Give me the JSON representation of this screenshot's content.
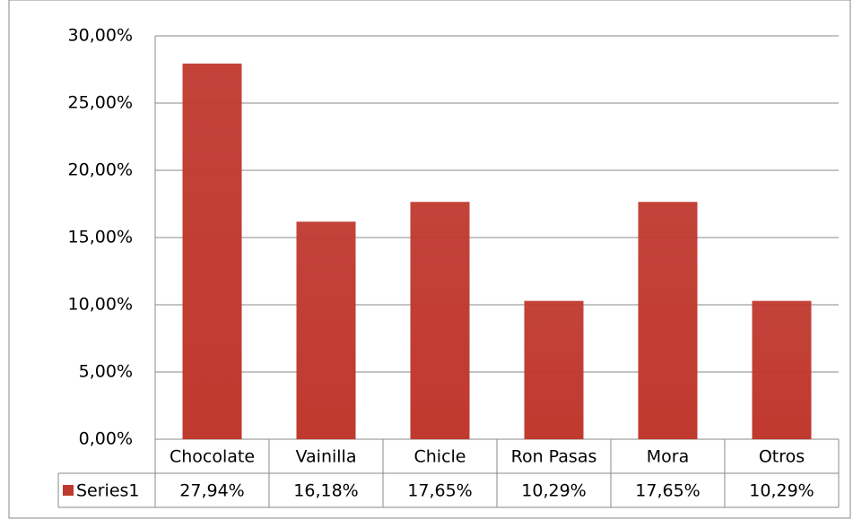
{
  "chart_data": {
    "type": "bar",
    "categories": [
      "Chocolate",
      "Vainilla",
      "Chicle",
      "Ron Pasas",
      "Mora",
      "Otros"
    ],
    "series": [
      {
        "name": "Series1",
        "color": "#c0392f",
        "values": [
          27.94,
          16.18,
          17.65,
          10.29,
          17.65,
          10.29
        ],
        "value_labels": [
          "27,94%",
          "16,18%",
          "17,65%",
          "10,29%",
          "17,65%",
          "10,29%"
        ]
      }
    ],
    "ylim": [
      0,
      30
    ],
    "yticks": [
      {
        "value": 0,
        "label": "0,00%"
      },
      {
        "value": 5,
        "label": "5,00%"
      },
      {
        "value": 10,
        "label": "10,00%"
      },
      {
        "value": 15,
        "label": "15,00%"
      },
      {
        "value": 20,
        "label": "20,00%"
      },
      {
        "value": 25,
        "label": "25,00%"
      },
      {
        "value": 30,
        "label": "30,00%"
      }
    ],
    "grid": true
  }
}
